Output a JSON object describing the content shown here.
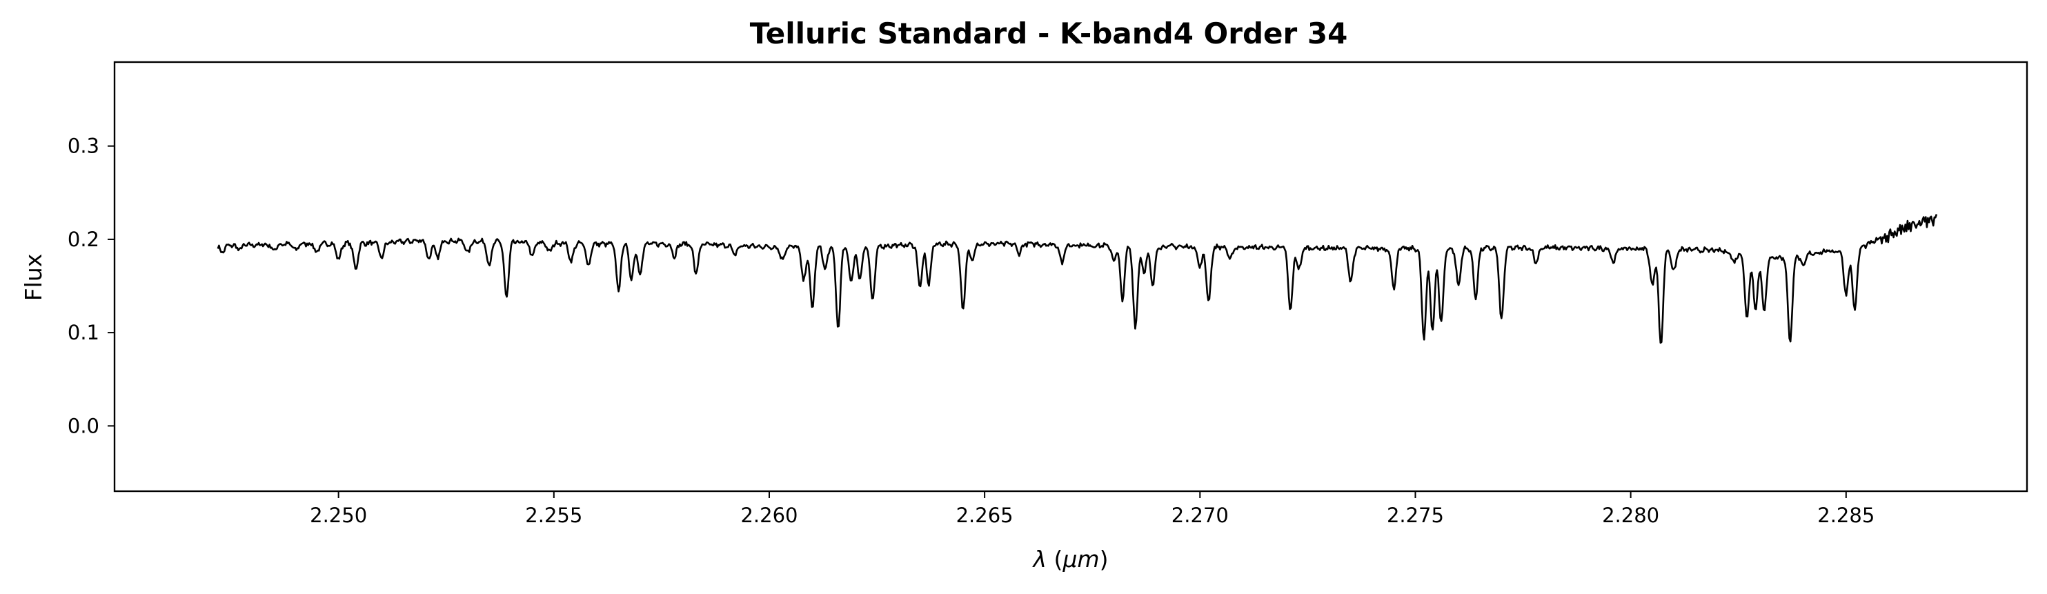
{
  "chart_data": {
    "type": "line",
    "title": "Telluric Standard - K-band4 Order 34",
    "xlabel": "λ (μm)",
    "ylabel": "Flux",
    "xlim": [
      2.2448,
      2.2892
    ],
    "ylim": [
      -0.07,
      0.39
    ],
    "xticks": [
      2.25,
      2.255,
      2.26,
      2.265,
      2.27,
      2.275,
      2.28,
      2.285
    ],
    "xtick_labels": [
      "2.250",
      "2.255",
      "2.260",
      "2.265",
      "2.270",
      "2.275",
      "2.280",
      "2.285"
    ],
    "yticks": [
      0.0,
      0.1,
      0.2,
      0.3
    ],
    "ytick_labels": [
      "0.0",
      "0.1",
      "0.2",
      "0.3"
    ],
    "grid": false,
    "series": [
      {
        "color": "#000000",
        "x_start": 2.2472,
        "x_end": 2.2871,
        "continuum_points": [
          [
            2.2472,
            0.193
          ],
          [
            2.249,
            0.195
          ],
          [
            2.251,
            0.196
          ],
          [
            2.252,
            0.199
          ],
          [
            2.254,
            0.197
          ],
          [
            2.256,
            0.195
          ],
          [
            2.258,
            0.195
          ],
          [
            2.26,
            0.192
          ],
          [
            2.262,
            0.192
          ],
          [
            2.264,
            0.195
          ],
          [
            2.266,
            0.195
          ],
          [
            2.268,
            0.193
          ],
          [
            2.27,
            0.192
          ],
          [
            2.272,
            0.191
          ],
          [
            2.274,
            0.19
          ],
          [
            2.276,
            0.19
          ],
          [
            2.278,
            0.191
          ],
          [
            2.28,
            0.19
          ],
          [
            2.282,
            0.188
          ],
          [
            2.2835,
            0.18
          ],
          [
            2.2845,
            0.187
          ],
          [
            2.2852,
            0.188
          ],
          [
            2.286,
            0.205
          ],
          [
            2.2866,
            0.215
          ],
          [
            2.2871,
            0.222
          ]
        ],
        "absorption_lines": [
          [
            2.2473,
            0.186
          ],
          [
            2.2477,
            0.189
          ],
          [
            2.2485,
            0.188
          ],
          [
            2.249,
            0.188
          ],
          [
            2.2495,
            0.186
          ],
          [
            2.25,
            0.178
          ],
          [
            2.2504,
            0.168
          ],
          [
            2.251,
            0.18
          ],
          [
            2.2521,
            0.178
          ],
          [
            2.2523,
            0.179
          ],
          [
            2.253,
            0.185
          ],
          [
            2.2535,
            0.172
          ],
          [
            2.2539,
            0.137
          ],
          [
            2.2545,
            0.182
          ],
          [
            2.2549,
            0.186
          ],
          [
            2.2554,
            0.176
          ],
          [
            2.2558,
            0.172
          ],
          [
            2.2565,
            0.145
          ],
          [
            2.2568,
            0.157
          ],
          [
            2.257,
            0.163
          ],
          [
            2.2578,
            0.182
          ],
          [
            2.2583,
            0.163
          ],
          [
            2.2592,
            0.183
          ],
          [
            2.2603,
            0.178
          ],
          [
            2.2608,
            0.155
          ],
          [
            2.261,
            0.125
          ],
          [
            2.2613,
            0.168
          ],
          [
            2.2616,
            0.105
          ],
          [
            2.2619,
            0.155
          ],
          [
            2.2621,
            0.158
          ],
          [
            2.2624,
            0.133
          ],
          [
            2.2635,
            0.149
          ],
          [
            2.2637,
            0.152
          ],
          [
            2.2645,
            0.123
          ],
          [
            2.2647,
            0.178
          ],
          [
            2.2658,
            0.185
          ],
          [
            2.2668,
            0.175
          ],
          [
            2.268,
            0.178
          ],
          [
            2.2682,
            0.136
          ],
          [
            2.2685,
            0.105
          ],
          [
            2.2687,
            0.165
          ],
          [
            2.2689,
            0.15
          ],
          [
            2.27,
            0.17
          ],
          [
            2.2702,
            0.133
          ],
          [
            2.2707,
            0.178
          ],
          [
            2.2721,
            0.123
          ],
          [
            2.2723,
            0.168
          ],
          [
            2.2735,
            0.155
          ],
          [
            2.2745,
            0.148
          ],
          [
            2.2752,
            0.093
          ],
          [
            2.2754,
            0.103
          ],
          [
            2.2756,
            0.11
          ],
          [
            2.276,
            0.15
          ],
          [
            2.2764,
            0.138
          ],
          [
            2.277,
            0.113
          ],
          [
            2.2778,
            0.175
          ],
          [
            2.2796,
            0.175
          ],
          [
            2.2805,
            0.15
          ],
          [
            2.2807,
            0.085
          ],
          [
            2.281,
            0.165
          ],
          [
            2.2824,
            0.175
          ],
          [
            2.2827,
            0.115
          ],
          [
            2.2829,
            0.125
          ],
          [
            2.2831,
            0.123
          ],
          [
            2.2837,
            0.089
          ],
          [
            2.284,
            0.17
          ],
          [
            2.285,
            0.14
          ],
          [
            2.2852,
            0.123
          ]
        ]
      }
    ]
  }
}
